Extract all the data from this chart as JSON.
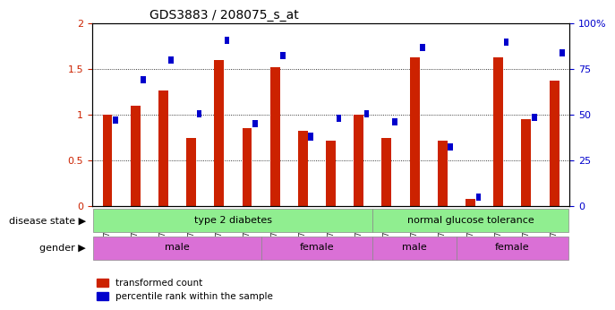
{
  "title": "GDS3883 / 208075_s_at",
  "samples": [
    "GSM572808",
    "GSM572809",
    "GSM572811",
    "GSM572813",
    "GSM572815",
    "GSM572816",
    "GSM572807",
    "GSM572810",
    "GSM572812",
    "GSM572814",
    "GSM572800",
    "GSM572801",
    "GSM572804",
    "GSM572805",
    "GSM572802",
    "GSM572803",
    "GSM572806"
  ],
  "red_values": [
    1.0,
    1.1,
    1.27,
    0.75,
    1.6,
    0.85,
    1.52,
    0.82,
    0.72,
    1.0,
    0.75,
    1.63,
    0.72,
    0.08,
    1.63,
    0.95,
    1.37
  ],
  "blue_pct": [
    47,
    69,
    80,
    50.5,
    91,
    45,
    82.5,
    38,
    48,
    50.5,
    46,
    87,
    32.5,
    5,
    90,
    48.5,
    84
  ],
  "ylim_left": [
    0,
    2
  ],
  "ylim_right": [
    0,
    100
  ],
  "yticks_left": [
    0,
    0.5,
    1.0,
    1.5,
    2.0
  ],
  "ytick_labels_left": [
    "0",
    "0.5",
    "1",
    "1.5",
    "2"
  ],
  "yticks_right": [
    0,
    25,
    50,
    75,
    100
  ],
  "ytick_labels_right": [
    "0",
    "25",
    "50",
    "75",
    "100%"
  ],
  "red_color": "#CC2200",
  "blue_color": "#0000CC",
  "green_color": "#90EE90",
  "purple_color": "#DA70D6",
  "legend_red": "transformed count",
  "legend_blue": "percentile rank within the sample",
  "disease_groups": [
    {
      "label": "type 2 diabetes",
      "start": 0,
      "end": 9
    },
    {
      "label": "normal glucose tolerance",
      "start": 10,
      "end": 16
    }
  ],
  "gender_groups": [
    {
      "label": "male",
      "start": 0,
      "end": 5
    },
    {
      "label": "female",
      "start": 6,
      "end": 9
    },
    {
      "label": "male",
      "start": 10,
      "end": 12
    },
    {
      "label": "female",
      "start": 13,
      "end": 16
    }
  ]
}
